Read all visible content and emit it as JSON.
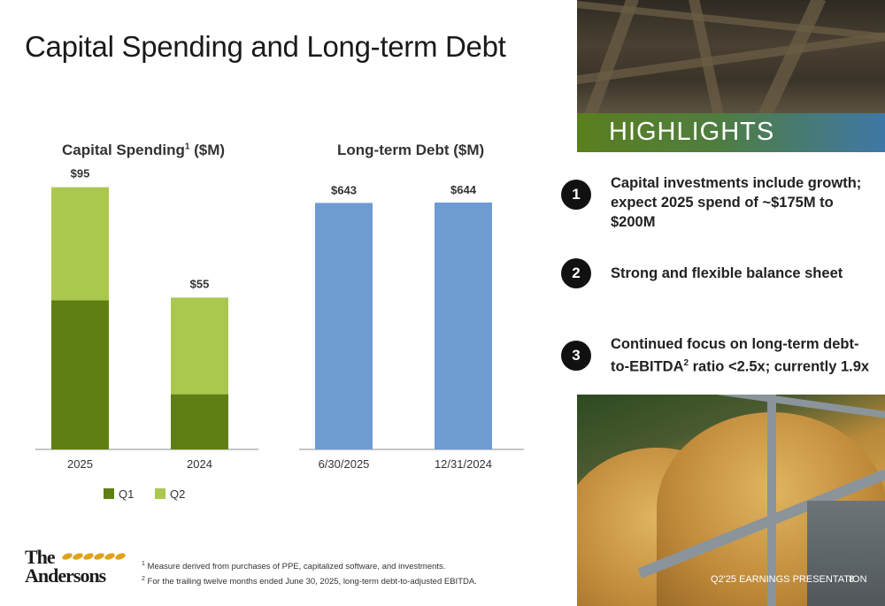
{
  "slide": {
    "title": "Capital Spending and Long-term Debt",
    "footer_label": "Q2'25 EARNINGS PRESENTATION",
    "page_number": "8",
    "logo_text_top": "The",
    "logo_text_bottom": "Andersons"
  },
  "highlights": {
    "heading": "HIGHLIGHTS",
    "items": [
      {
        "number": "1",
        "text": "Capital investments include growth; expect 2025 spend of ~$175M to $200M"
      },
      {
        "number": "2",
        "text": "Strong and flexible balance sheet"
      },
      {
        "number": "3",
        "text_main": "Continued focus on long-term debt-to-EBITDA",
        "sup": "2",
        "text_tail": " ratio <2.5x; currently 1.9x"
      }
    ]
  },
  "footnotes": [
    {
      "marker": "1",
      "text": "Measure derived from purchases of PPE, capitalized software, and investments."
    },
    {
      "marker": "2",
      "text": "For the trailing twelve months ended June 30, 2025, long-term debt-to-adjusted EBITDA."
    }
  ],
  "chart_titles": {
    "capex_main": "Capital Spending",
    "capex_sup": "1",
    "capex_unit": " ($M)",
    "debt": "Long-term Debt ($M)"
  },
  "colors": {
    "q1": "#5f7f14",
    "q2": "#aac84e",
    "debt": "#6f9bd3",
    "axis": "#8c8c8c"
  },
  "chart_data": [
    {
      "type": "bar",
      "stacked": true,
      "title": "Capital Spending¹ ($M)",
      "categories": [
        "2025",
        "2024"
      ],
      "series": [
        {
          "name": "Q1",
          "values": [
            54,
            20
          ]
        },
        {
          "name": "Q2",
          "values": [
            41,
            35
          ]
        }
      ],
      "totals": [
        95,
        55
      ],
      "total_labels": [
        "$95",
        "$55"
      ],
      "ylim": [
        0,
        100
      ],
      "legend": "bottom",
      "grid": false
    },
    {
      "type": "bar",
      "title": "Long-term Debt ($M)",
      "categories": [
        "6/30/2025",
        "12/31/2024"
      ],
      "values": [
        643,
        644
      ],
      "value_labels": [
        "$643",
        "$644"
      ],
      "ylim": [
        0,
        720
      ],
      "grid": false
    }
  ]
}
